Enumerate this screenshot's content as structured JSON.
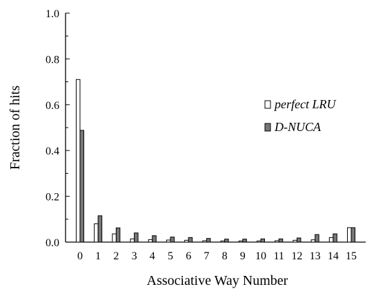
{
  "chart_data": {
    "type": "bar",
    "xlabel": "Associative Way Number",
    "ylabel": "Fraction of hits",
    "ylim": [
      0,
      1.0
    ],
    "yticks": [
      "0.0",
      "0.2",
      "0.4",
      "0.6",
      "0.8",
      "1.0"
    ],
    "grid": false,
    "legend_position": "right",
    "categories": [
      "0",
      "1",
      "2",
      "3",
      "4",
      "5",
      "6",
      "7",
      "8",
      "9",
      "10",
      "11",
      "12",
      "13",
      "14",
      "15"
    ],
    "series": [
      {
        "name": "perfect LRU",
        "color": "#ffffff",
        "values": [
          0.71,
          0.08,
          0.036,
          0.014,
          0.011,
          0.009,
          0.008,
          0.006,
          0.005,
          0.005,
          0.005,
          0.006,
          0.008,
          0.01,
          0.02,
          0.063
        ]
      },
      {
        "name": "D-NUCA",
        "color": "#777777",
        "values": [
          0.488,
          0.115,
          0.062,
          0.04,
          0.028,
          0.022,
          0.02,
          0.016,
          0.013,
          0.013,
          0.014,
          0.014,
          0.018,
          0.033,
          0.036,
          0.063
        ]
      }
    ]
  }
}
